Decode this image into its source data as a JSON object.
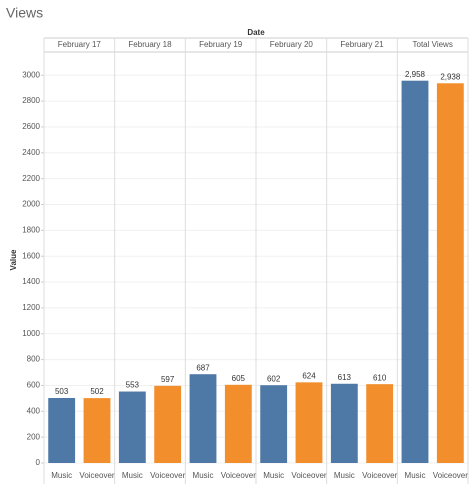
{
  "chart_data": {
    "type": "bar",
    "title": "Views",
    "column_header": "Date",
    "y_label": "Value",
    "categories": [
      "Music",
      "Voiceover"
    ],
    "colors": [
      "#4e79a7",
      "#f28e2b"
    ],
    "panes": [
      {
        "name": "February 17",
        "values": [
          503,
          502
        ]
      },
      {
        "name": "February 18",
        "values": [
          553,
          597
        ]
      },
      {
        "name": "February 19",
        "values": [
          687,
          605
        ]
      },
      {
        "name": "February 20",
        "values": [
          602,
          624
        ]
      },
      {
        "name": "February 21",
        "values": [
          613,
          610
        ]
      },
      {
        "name": "Total Views",
        "values": [
          2958,
          2938
        ],
        "value_labels": [
          "2,958",
          "2,938"
        ]
      }
    ],
    "ylim": [
      0,
      3180
    ],
    "yticks": [
      0,
      200,
      400,
      600,
      800,
      1000,
      1200,
      1400,
      1600,
      1800,
      2000,
      2200,
      2400,
      2600,
      2800,
      3000
    ],
    "grid": true
  }
}
